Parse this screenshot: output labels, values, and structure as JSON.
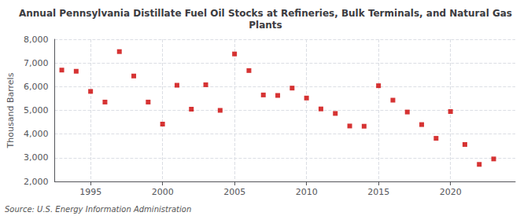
{
  "chart_data": {
    "type": "scatter",
    "title": "Annual Pennsylvania Distillate Fuel Oil Stocks at Refineries, Bulk Terminals, and Natural Gas\nPlants",
    "ylabel": "Thousand Barrels",
    "annotations": [
      "Source: U.S. Energy Information Administration"
    ],
    "x": [
      1993,
      1994,
      1995,
      1996,
      1997,
      1998,
      1999,
      2000,
      2001,
      2002,
      2003,
      2004,
      2005,
      2006,
      2007,
      2008,
      2009,
      2010,
      2011,
      2012,
      2013,
      2014,
      2015,
      2016,
      2017,
      2018,
      2019,
      2020,
      2021,
      2022,
      2023
    ],
    "values": [
      6700,
      6650,
      5800,
      5350,
      7480,
      6450,
      5350,
      4420,
      6060,
      5050,
      6080,
      5000,
      7380,
      6680,
      5650,
      5630,
      5940,
      5520,
      5060,
      4870,
      4340,
      4330,
      6040,
      5430,
      4930,
      4400,
      3820,
      4950,
      3560,
      2720,
      2950
    ],
    "color": "#cc0000",
    "marker": "square",
    "xlim": [
      1992.5,
      2024.5
    ],
    "xticks": [
      1995,
      2000,
      2005,
      2010,
      2015,
      2020
    ],
    "ylim": [
      2000,
      8000
    ],
    "yticks": [
      {
        "value": 2000,
        "label": "2,000"
      },
      {
        "value": 3000,
        "label": "3,000"
      },
      {
        "value": 4000,
        "label": "4,000"
      },
      {
        "value": 5000,
        "label": "5,000"
      },
      {
        "value": 6000,
        "label": "6,000"
      },
      {
        "value": 7000,
        "label": "7,000"
      },
      {
        "value": 8000,
        "label": "8,000"
      }
    ],
    "grid": true
  }
}
